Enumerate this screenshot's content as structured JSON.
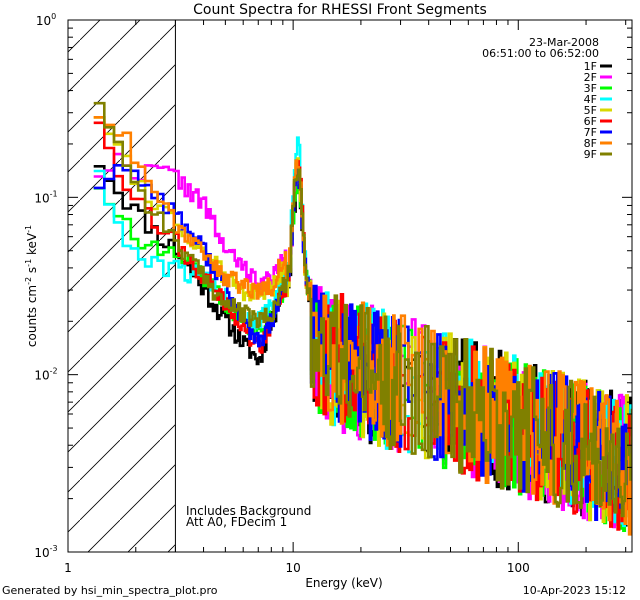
{
  "chart_data": {
    "type": "line",
    "title": "Count Spectra for RHESSI Front Segments",
    "xlabel": "Energy (keV)",
    "ylabel_base": "counts cm",
    "xscale": "log",
    "yscale": "log",
    "xlim": [
      1,
      320
    ],
    "ylim": [
      0.001,
      1
    ],
    "x_ticks": [
      {
        "value": 1,
        "label": "1"
      },
      {
        "value": 10,
        "label": "10"
      },
      {
        "value": 100,
        "label": "100"
      }
    ],
    "y_ticks": [
      {
        "value": 0.001,
        "label_base": "10",
        "label_exp": "-3"
      },
      {
        "value": 0.01,
        "label_base": "10",
        "label_exp": "-2"
      },
      {
        "value": 0.1,
        "label_base": "10",
        "label_exp": "-1"
      },
      {
        "value": 1,
        "label_base": "10",
        "label_exp": "0"
      }
    ],
    "hatched_region": {
      "x_from": 1,
      "x_to": 3
    },
    "date": "23-Mar-2008",
    "time_range": "06:51:00 to 06:52:00",
    "annotations": [
      "Includes Background",
      "Att A0, FDecim 1"
    ],
    "legend_position": "top-right",
    "series": [
      {
        "name": "1F",
        "color": "#000000",
        "peak": 0.12,
        "seed": 11,
        "values_low": [
          {
            "x": 1.3,
            "y": 0.16
          },
          {
            "x": 1.6,
            "y": 0.11
          },
          {
            "x": 2,
            "y": 0.08
          },
          {
            "x": 2.5,
            "y": 0.06
          },
          {
            "x": 3,
            "y": 0.05
          },
          {
            "x": 4,
            "y": 0.03
          },
          {
            "x": 5,
            "y": 0.02
          },
          {
            "x": 6,
            "y": 0.015
          },
          {
            "x": 7,
            "y": 0.012
          },
          {
            "x": 8,
            "y": 0.02
          },
          {
            "x": 9,
            "y": 0.03
          }
        ]
      },
      {
        "name": "2F",
        "color": "#ff00ff",
        "peak": 0.14,
        "seed": 22,
        "values_low": [
          {
            "x": 1.3,
            "y": 0.14
          },
          {
            "x": 1.6,
            "y": 0.16
          },
          {
            "x": 2,
            "y": 0.14
          },
          {
            "x": 2.5,
            "y": 0.14
          },
          {
            "x": 3,
            "y": 0.13
          },
          {
            "x": 4,
            "y": 0.09
          },
          {
            "x": 5,
            "y": 0.05
          },
          {
            "x": 6,
            "y": 0.04
          },
          {
            "x": 7,
            "y": 0.033
          },
          {
            "x": 8,
            "y": 0.035
          },
          {
            "x": 9,
            "y": 0.045
          }
        ]
      },
      {
        "name": "3F",
        "color": "#00ff00",
        "peak": 0.13,
        "seed": 33,
        "values_low": [
          {
            "x": 1.3,
            "y": 0.12
          },
          {
            "x": 1.6,
            "y": 0.08
          },
          {
            "x": 2,
            "y": 0.055
          },
          {
            "x": 2.5,
            "y": 0.05
          },
          {
            "x": 3,
            "y": 0.048
          },
          {
            "x": 4,
            "y": 0.035
          },
          {
            "x": 5,
            "y": 0.025
          },
          {
            "x": 6,
            "y": 0.02
          },
          {
            "x": 7,
            "y": 0.018
          },
          {
            "x": 8,
            "y": 0.022
          },
          {
            "x": 9,
            "y": 0.03
          }
        ]
      },
      {
        "name": "4F",
        "color": "#00ffff",
        "peak": 0.19,
        "seed": 44,
        "values_low": [
          {
            "x": 1.3,
            "y": 0.15
          },
          {
            "x": 1.6,
            "y": 0.065
          },
          {
            "x": 2,
            "y": 0.045
          },
          {
            "x": 2.5,
            "y": 0.04
          },
          {
            "x": 3,
            "y": 0.04
          },
          {
            "x": 4,
            "y": 0.035
          },
          {
            "x": 5,
            "y": 0.028
          },
          {
            "x": 6,
            "y": 0.022
          },
          {
            "x": 7,
            "y": 0.02
          },
          {
            "x": 8,
            "y": 0.025
          },
          {
            "x": 9,
            "y": 0.035
          }
        ]
      },
      {
        "name": "5F",
        "color": "#d8d800",
        "peak": 0.15,
        "seed": 55,
        "values_low": [
          {
            "x": 1.3,
            "y": 0.3
          },
          {
            "x": 1.6,
            "y": 0.2
          },
          {
            "x": 2,
            "y": 0.12
          },
          {
            "x": 2.5,
            "y": 0.09
          },
          {
            "x": 3,
            "y": 0.07
          },
          {
            "x": 4,
            "y": 0.05
          },
          {
            "x": 5,
            "y": 0.035
          },
          {
            "x": 6,
            "y": 0.03
          },
          {
            "x": 7,
            "y": 0.028
          },
          {
            "x": 8,
            "y": 0.03
          },
          {
            "x": 9,
            "y": 0.04
          }
        ]
      },
      {
        "name": "6F",
        "color": "#ff0000",
        "peak": 0.15,
        "seed": 66,
        "values_low": [
          {
            "x": 1.3,
            "y": 0.28
          },
          {
            "x": 1.6,
            "y": 0.15
          },
          {
            "x": 2,
            "y": 0.09
          },
          {
            "x": 2.5,
            "y": 0.07
          },
          {
            "x": 3,
            "y": 0.055
          },
          {
            "x": 4,
            "y": 0.035
          },
          {
            "x": 5,
            "y": 0.025
          },
          {
            "x": 6,
            "y": 0.018
          },
          {
            "x": 7,
            "y": 0.014
          },
          {
            "x": 8,
            "y": 0.02
          },
          {
            "x": 9,
            "y": 0.03
          }
        ]
      },
      {
        "name": "7F",
        "color": "#0000ff",
        "peak": 0.14,
        "seed": 77,
        "values_low": [
          {
            "x": 1.3,
            "y": 0.12
          },
          {
            "x": 1.6,
            "y": 0.15
          },
          {
            "x": 2,
            "y": 0.13
          },
          {
            "x": 2.5,
            "y": 0.1
          },
          {
            "x": 3,
            "y": 0.08
          },
          {
            "x": 4,
            "y": 0.05
          },
          {
            "x": 5,
            "y": 0.03
          },
          {
            "x": 6,
            "y": 0.02
          },
          {
            "x": 7,
            "y": 0.015
          },
          {
            "x": 8,
            "y": 0.02
          },
          {
            "x": 9,
            "y": 0.03
          }
        ]
      },
      {
        "name": "8F",
        "color": "#ff8000",
        "peak": 0.15,
        "seed": 88,
        "values_low": [
          {
            "x": 1.3,
            "y": 0.3
          },
          {
            "x": 1.6,
            "y": 0.25
          },
          {
            "x": 2,
            "y": 0.16
          },
          {
            "x": 2.5,
            "y": 0.1
          },
          {
            "x": 3,
            "y": 0.07
          },
          {
            "x": 4,
            "y": 0.05
          },
          {
            "x": 5,
            "y": 0.035
          },
          {
            "x": 6,
            "y": 0.032
          },
          {
            "x": 7,
            "y": 0.03
          },
          {
            "x": 8,
            "y": 0.032
          },
          {
            "x": 9,
            "y": 0.045
          }
        ]
      },
      {
        "name": "9F",
        "color": "#808000",
        "peak": 0.14,
        "seed": 99,
        "values_low": [
          {
            "x": 1.3,
            "y": 0.36
          },
          {
            "x": 1.6,
            "y": 0.2
          },
          {
            "x": 2,
            "y": 0.11
          },
          {
            "x": 2.5,
            "y": 0.075
          },
          {
            "x": 3,
            "y": 0.055
          },
          {
            "x": 4,
            "y": 0.035
          },
          {
            "x": 5,
            "y": 0.025
          },
          {
            "x": 6,
            "y": 0.022
          },
          {
            "x": 7,
            "y": 0.02
          },
          {
            "x": 8,
            "y": 0.022
          },
          {
            "x": 9,
            "y": 0.032
          }
        ]
      }
    ]
  },
  "footer": {
    "generated_by": "Generated by hsi_min_spectra_plot.pro",
    "timestamp": "10-Apr-2023 15:12"
  }
}
